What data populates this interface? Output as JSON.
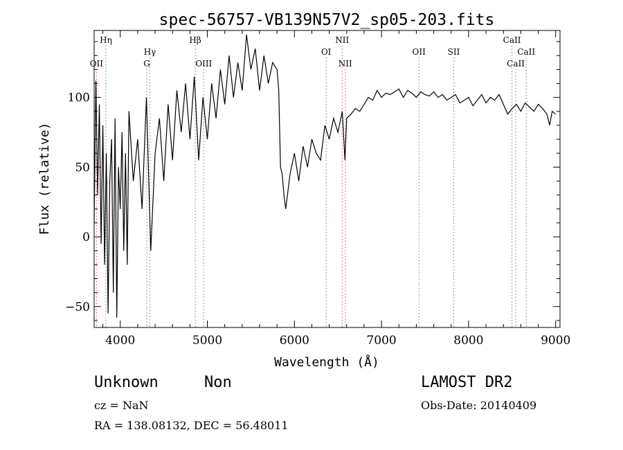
{
  "chart_data": {
    "type": "line",
    "title": "spec-56757-VB139N57V2_sp05-203.fits",
    "xlabel": "Wavelength (Å)",
    "ylabel": "Flux (relative)",
    "xlim": [
      3700,
      9050
    ],
    "ylim": [
      -65,
      148
    ],
    "x_ticks": [
      4000,
      5000,
      6000,
      7000,
      8000,
      9000
    ],
    "y_ticks": [
      -50,
      0,
      50,
      100
    ],
    "grid": false,
    "series": [
      {
        "x": [
          3700,
          3720,
          3740,
          3760,
          3780,
          3800,
          3820,
          3840,
          3860,
          3880,
          3900,
          3920,
          3940,
          3960,
          3980,
          4000,
          4020,
          4040,
          4060,
          4080,
          4100,
          4150,
          4200,
          4250,
          4300,
          4350,
          4400,
          4450,
          4500,
          4550,
          4600,
          4650,
          4700,
          4750,
          4800,
          4850,
          4900,
          4950,
          5000,
          5050,
          5100,
          5150,
          5200,
          5250,
          5300,
          5350,
          5400,
          5450,
          5500,
          5550,
          5600,
          5650,
          5700,
          5750,
          5800,
          5820,
          5840,
          5860,
          5880,
          5900,
          5920,
          5950,
          6000,
          6050,
          6100,
          6150,
          6200,
          6250,
          6300,
          6350,
          6400,
          6450,
          6500,
          6550,
          6580,
          6600,
          6650,
          6700,
          6750,
          6800,
          6850,
          6900,
          6950,
          7000,
          7050,
          7100,
          7150,
          7200,
          7250,
          7300,
          7350,
          7400,
          7450,
          7500,
          7550,
          7600,
          7650,
          7700,
          7750,
          7800,
          7850,
          7900,
          7950,
          8000,
          8050,
          8100,
          8150,
          8200,
          8250,
          8300,
          8350,
          8400,
          8450,
          8500,
          8550,
          8600,
          8650,
          8700,
          8750,
          8800,
          8850,
          8900,
          8930,
          8960,
          9000
        ],
        "values": [
          10,
          112,
          30,
          95,
          -5,
          80,
          -20,
          60,
          -55,
          40,
          70,
          -40,
          85,
          -58,
          50,
          20,
          75,
          -10,
          60,
          -20,
          90,
          40,
          70,
          20,
          100,
          -10,
          60,
          85,
          40,
          95,
          55,
          105,
          75,
          110,
          70,
          115,
          55,
          100,
          70,
          110,
          85,
          120,
          95,
          130,
          100,
          125,
          105,
          145,
          120,
          135,
          105,
          130,
          110,
          125,
          120,
          105,
          50,
          45,
          30,
          20,
          30,
          45,
          60,
          40,
          65,
          50,
          70,
          60,
          55,
          80,
          70,
          85,
          75,
          90,
          55,
          85,
          88,
          92,
          90,
          95,
          100,
          98,
          105,
          100,
          103,
          102,
          104,
          106,
          100,
          105,
          103,
          100,
          104,
          102,
          101,
          104,
          100,
          102,
          98,
          100,
          102,
          96,
          98,
          100,
          94,
          98,
          102,
          96,
          100,
          98,
          102,
          95,
          88,
          92,
          95,
          90,
          96,
          93,
          90,
          95,
          92,
          88,
          80,
          90,
          88
        ]
      }
    ],
    "line_markers": [
      {
        "label": "Hη",
        "x": 3835,
        "row": 1,
        "color": "#7a7a7a"
      },
      {
        "label": "OII",
        "x": 3727,
        "row": 3,
        "color": "#c06060"
      },
      {
        "label": "Hγ",
        "x": 4340,
        "row": 2,
        "color": "#7a7a7a"
      },
      {
        "label": "G",
        "x": 4305,
        "row": 3,
        "color": "#7a7a7a"
      },
      {
        "label": "Hβ",
        "x": 4861,
        "row": 1,
        "color": "#7a7a7a"
      },
      {
        "label": "OIII",
        "x": 4959,
        "row": 3,
        "color": "#c06060"
      },
      {
        "label": "NII",
        "x": 6548,
        "row": 1,
        "color": "#c06060"
      },
      {
        "label": "OI",
        "x": 6364,
        "row": 2,
        "color": "#c06060"
      },
      {
        "label": "NII",
        "x": 6584,
        "row": 3,
        "color": "#c06060"
      },
      {
        "label": "OII",
        "x": 7430,
        "row": 2,
        "color": "#c06060"
      },
      {
        "label": "SII",
        "x": 7830,
        "row": 2,
        "color": "#7a7a7a"
      },
      {
        "label": "CaII",
        "x": 8498,
        "row": 1,
        "color": "#7a7a7a"
      },
      {
        "label": "CaII",
        "x": 8662,
        "row": 2,
        "color": "#7a7a7a"
      },
      {
        "label": "CaII",
        "x": 8542,
        "row": 3,
        "color": "#7a7a7a"
      }
    ]
  },
  "info": {
    "class_label": "Unknown",
    "subclass_label": "Non",
    "survey": "LAMOST DR2",
    "redshift": "cz = NaN",
    "obs_date": "Obs-Date: 20140409",
    "coordinates": "RA = 138.08132, DEC =  56.48011"
  }
}
